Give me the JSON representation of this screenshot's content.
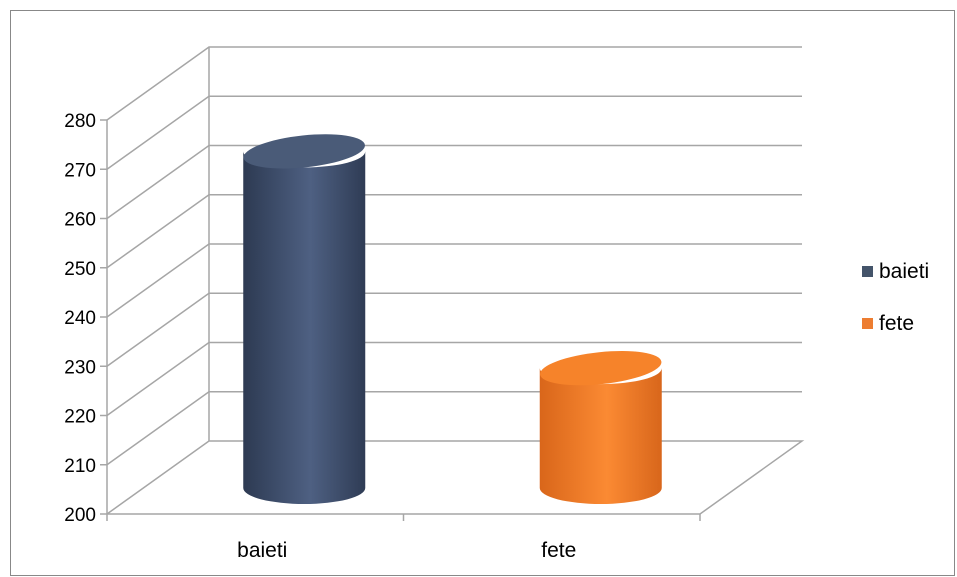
{
  "chart_data": {
    "type": "bar",
    "style": "3d-cylinder",
    "categories": [
      "baieti",
      "fete"
    ],
    "series": [
      {
        "values": [
          272,
          228
        ]
      }
    ],
    "bar_colors": [
      "#4a5b78",
      "#f6832a"
    ],
    "ylim": [
      200,
      280
    ],
    "y_ticks": [
      200,
      210,
      220,
      230,
      240,
      250,
      260,
      270,
      280
    ],
    "grid": true,
    "legend": {
      "placement": "right",
      "entries": [
        {
          "label": "baieti",
          "color": "#44546a"
        },
        {
          "label": "fete",
          "color": "#ed7d31"
        }
      ]
    },
    "title": "",
    "xlabel": "",
    "ylabel": ""
  }
}
